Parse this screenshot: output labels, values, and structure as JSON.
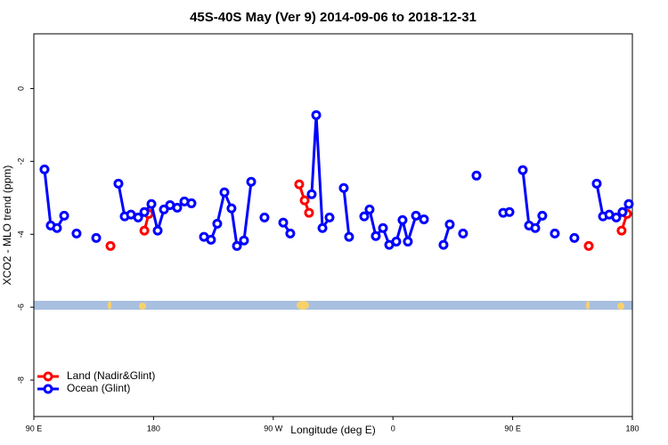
{
  "chart_data": {
    "type": "line",
    "title": "45S-40S May (Ver 9)   2014-09-06 to 2018-12-31",
    "x_label": "Longitude (deg E)",
    "y_label": "XCO2 - MLO trend (ppm)",
    "xlim": [
      90,
      540
    ],
    "xticks": [
      {
        "value": 90,
        "label": "90 E"
      },
      {
        "value": 180,
        "label": "180"
      },
      {
        "value": 270,
        "label": "90 W"
      },
      {
        "value": 360,
        "label": "0"
      },
      {
        "value": 450,
        "label": "90 E"
      },
      {
        "value": 540,
        "label": "180"
      }
    ],
    "ylim": [
      -9.0,
      1.5
    ],
    "yticks": [
      0,
      -2,
      -4,
      -6,
      -8
    ],
    "legend": "bottom-left",
    "series": [
      {
        "name": "Land (Nadir&Glint)",
        "color": "#ff0000",
        "x": [
          147.6,
          null,
          173.1,
          176.4,
          null,
          289.5,
          293.6,
          296.9,
          null,
          507.2,
          null,
          531.9,
          536.0
        ],
        "values": [
          -4.32,
          null,
          -3.9,
          -3.44,
          null,
          -2.63,
          -3.07,
          -3.41,
          null,
          -4.32,
          null,
          -3.9,
          -3.44
        ]
      },
      {
        "name": "Ocean (Glint)",
        "color": "#0000ff",
        "x": [
          98.0,
          102.7,
          107.4,
          112.8,
          null,
          122.1,
          null,
          136.9,
          null,
          153.6,
          158.3,
          163.0,
          168.4,
          173.1,
          178.4,
          183.1,
          187.8,
          192.4,
          197.8,
          203.2,
          208.5,
          null,
          217.9,
          223.2,
          227.9,
          233.3,
          238.6,
          242.7,
          248.0,
          253.4,
          null,
          263.4,
          null,
          277.5,
          282.8,
          null,
          298.9,
          302.3,
          307.0,
          312.3,
          null,
          323.0,
          327.0,
          null,
          338.4,
          342.4,
          347.1,
          352.5,
          357.2,
          362.5,
          367.2,
          371.2,
          377.3,
          383.3,
          null,
          398.0,
          402.7,
          null,
          412.7,
          null,
          422.8,
          null,
          442.9,
          447.6,
          null,
          457.6,
          462.3,
          467.0,
          472.3,
          null,
          481.7,
          null,
          496.4,
          null,
          513.2,
          517.9,
          522.6,
          527.9,
          532.6,
          537.3
        ],
        "values": [
          -2.22,
          -3.76,
          -3.83,
          -3.49,
          null,
          -3.98,
          null,
          -4.1,
          null,
          -2.61,
          -3.51,
          -3.46,
          -3.54,
          -3.39,
          -3.17,
          -3.9,
          -3.32,
          -3.2,
          -3.27,
          -3.1,
          -3.15,
          null,
          -4.07,
          -4.15,
          -3.71,
          -2.85,
          -3.29,
          -4.32,
          -4.17,
          -2.56,
          null,
          -3.54,
          null,
          -3.68,
          -3.98,
          null,
          -2.9,
          -0.73,
          -3.83,
          -3.54,
          null,
          -2.73,
          -4.07,
          null,
          -3.51,
          -3.32,
          -4.05,
          -3.83,
          -4.29,
          -4.2,
          -3.61,
          -4.2,
          -3.49,
          -3.59,
          null,
          -4.29,
          -3.73,
          null,
          -3.98,
          null,
          -2.39,
          null,
          -3.41,
          -3.39,
          null,
          -2.24,
          -3.76,
          -3.83,
          -3.49,
          null,
          -3.98,
          null,
          -4.1,
          null,
          -2.61,
          -3.51,
          -3.46,
          -3.54,
          -3.39,
          -3.17
        ]
      }
    ]
  }
}
